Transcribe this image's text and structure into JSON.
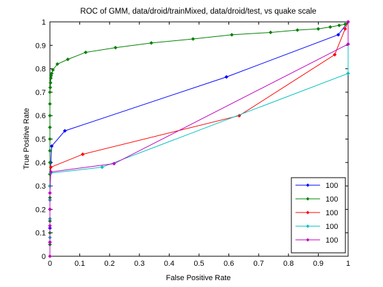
{
  "chart_data": {
    "type": "line",
    "title": "ROC of GMM, data/droid/trainMixed, data/droid/test, vs quake scale",
    "xlabel": "False Positive Rate",
    "ylabel": "True Positive Rate",
    "xlim": [
      0,
      1
    ],
    "ylim": [
      0,
      1
    ],
    "xticks": [
      "0",
      "0.1",
      "0.2",
      "0.3",
      "0.4",
      "0.5",
      "0.6",
      "0.7",
      "0.8",
      "0.9",
      "1"
    ],
    "yticks": [
      "0",
      "0.1",
      "0.2",
      "0.3",
      "0.4",
      "0.5",
      "0.6",
      "0.7",
      "0.8",
      "0.9",
      "1"
    ],
    "grid": false,
    "legend_position": "bottom-right",
    "series": [
      {
        "name": "100",
        "color": "#0000ff",
        "x": [
          0,
          0,
          0,
          0,
          0,
          0.003,
          0.006,
          0.05,
          0.592,
          0.967,
          1.0
        ],
        "y": [
          0.0,
          0.06,
          0.12,
          0.2,
          0.3,
          0.4,
          0.47,
          0.535,
          0.765,
          0.945,
          1.0
        ]
      },
      {
        "name": "100",
        "color": "#008000",
        "x": [
          0,
          0,
          0,
          0,
          0,
          0,
          0,
          0,
          0,
          0,
          0,
          0,
          0,
          0,
          0,
          0.001,
          0.002,
          0.003,
          0.004,
          0.006,
          0.01,
          0.025,
          0.06,
          0.12,
          0.22,
          0.34,
          0.48,
          0.61,
          0.74,
          0.83,
          0.9,
          0.94,
          0.97,
          0.99,
          1.0
        ],
        "y": [
          0.0,
          0.05,
          0.1,
          0.15,
          0.2,
          0.25,
          0.3,
          0.35,
          0.4,
          0.45,
          0.5,
          0.55,
          0.6,
          0.65,
          0.7,
          0.72,
          0.74,
          0.76,
          0.77,
          0.78,
          0.795,
          0.82,
          0.84,
          0.87,
          0.89,
          0.91,
          0.927,
          0.945,
          0.955,
          0.965,
          0.97,
          0.978,
          0.985,
          0.99,
          1.0
        ]
      },
      {
        "name": "100",
        "color": "#ff0000",
        "x": [
          0,
          0,
          0,
          0,
          0,
          0.003,
          0.11,
          0.635,
          0.955,
          0.99,
          1.0
        ],
        "y": [
          0.0,
          0.08,
          0.16,
          0.24,
          0.3,
          0.38,
          0.435,
          0.6,
          0.86,
          0.97,
          1.0
        ]
      },
      {
        "name": "100",
        "color": "#00bfbf",
        "x": [
          0,
          0,
          0,
          0,
          0,
          0.003,
          0.175,
          1.0,
          1.0
        ],
        "y": [
          0.0,
          0.08,
          0.16,
          0.24,
          0.3,
          0.355,
          0.38,
          0.78,
          1.0
        ]
      },
      {
        "name": "100",
        "color": "#bf00bf",
        "x": [
          0,
          0,
          0,
          0,
          0,
          0.003,
          0.215,
          1.0,
          1.0
        ],
        "y": [
          0.0,
          0.06,
          0.13,
          0.2,
          0.27,
          0.36,
          0.395,
          0.905,
          1.0
        ]
      }
    ]
  }
}
